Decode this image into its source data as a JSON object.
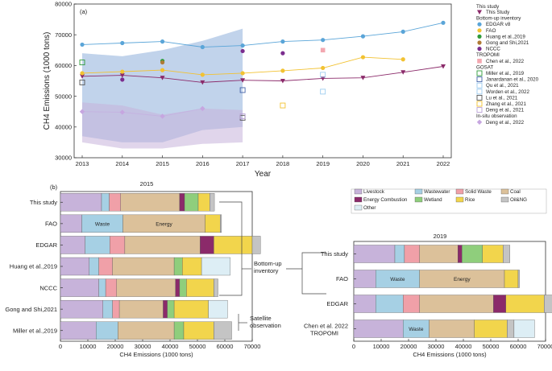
{
  "chart_data": [
    {
      "type": "line",
      "panel_label": "(a)",
      "xlabel": "Year",
      "ylabel": "CH4 Emissions (1000 tons)",
      "xlim": [
        2013,
        2022
      ],
      "ylim": [
        30000,
        80000
      ],
      "x_ticks": [
        "2013",
        "2014",
        "2015",
        "2016",
        "2017",
        "2018",
        "2019",
        "2020",
        "2021",
        "2022"
      ],
      "y_ticks": [
        "30000",
        "40000",
        "50000",
        "60000",
        "70000",
        "80000"
      ],
      "bands": [
        {
          "name": "EDGAR range",
          "color": "#9fbbe0",
          "x": [
            2013,
            2014,
            2015,
            2016,
            2017
          ],
          "lower": [
            37000,
            35000,
            35000,
            39000,
            40000
          ],
          "upper": [
            64000,
            63000,
            65000,
            68000,
            72000
          ]
        },
        {
          "name": "This study range",
          "color": "#c6b3da",
          "x": [
            2013,
            2014,
            2015,
            2016,
            2017
          ],
          "lower": [
            35000,
            33000,
            33000,
            34500,
            35000
          ],
          "upper": [
            48000,
            47000,
            44000,
            46000,
            45500
          ]
        }
      ],
      "legend_title": "This study",
      "legend_groups": [
        {
          "header": "Bottom-up inventory",
          "items": [
            "EDGAR v8",
            "FAO",
            "Huang et al.,2019",
            "Gong and Shi,2021",
            "NCCC"
          ]
        },
        {
          "header": "TROPOMI",
          "items": [
            "Chen et al., 2022"
          ]
        },
        {
          "header": "GOSAT",
          "items": [
            "Miller et al., 2019",
            "Janardanan et al., 2020",
            "Qu et al., 2021",
            "Worden et al., 2022",
            "Lu et al., 2021",
            "Zhang et al., 2021",
            "Deng et al., 2021"
          ]
        },
        {
          "header": "In-situ observation",
          "items": [
            "Deng et al., 2022"
          ]
        }
      ],
      "series": [
        {
          "name": "This Study",
          "marker": "triangle-down",
          "color": "#8b2a6a",
          "x": [
            2013,
            2014,
            2015,
            2016,
            2017,
            2018,
            2019,
            2020,
            2021,
            2022
          ],
          "values": [
            56500,
            56800,
            56000,
            54500,
            55200,
            55000,
            55800,
            56000,
            57800,
            59700
          ]
        },
        {
          "name": "EDGAR v8",
          "marker": "circle",
          "color": "#5aa5d8",
          "x": [
            2013,
            2014,
            2015,
            2016,
            2017,
            2018,
            2019,
            2020,
            2021,
            2022
          ],
          "values": [
            66800,
            67300,
            67800,
            66000,
            66500,
            67800,
            68300,
            69500,
            71000,
            73900
          ]
        },
        {
          "name": "FAO",
          "marker": "circle",
          "color": "#f2c232",
          "x": [
            2013,
            2014,
            2015,
            2016,
            2017,
            2018,
            2019,
            2020,
            2021
          ],
          "values": [
            57500,
            58000,
            58500,
            57000,
            57500,
            58300,
            59200,
            62700,
            62000
          ]
        },
        {
          "name": "Huang et al.,2019",
          "marker": "circle",
          "color": "#2f9b3a",
          "x": [
            2015
          ],
          "values": [
            61500
          ]
        },
        {
          "name": "Gong and Shi,2021",
          "marker": "circle",
          "color": "#b07b35",
          "x": [
            2015
          ],
          "values": [
            61000
          ]
        },
        {
          "name": "NCCC",
          "marker": "circle",
          "color": "#7b2d8e",
          "x": [
            2014,
            2017,
            2018
          ],
          "values": [
            55400,
            64700,
            64000
          ]
        },
        {
          "name": "Chen et al., 2022",
          "marker": "square-filled",
          "color": "#f3a7b0",
          "x": [
            2019
          ],
          "values": [
            65000
          ]
        },
        {
          "name": "Miller et al., 2019",
          "marker": "square-open",
          "color": "#2f9b3a",
          "x": [
            2013
          ],
          "values": [
            61000
          ]
        },
        {
          "name": "Janardanan et al., 2020",
          "marker": "square-open",
          "color": "#4563a8",
          "x": [
            2017
          ],
          "values": [
            52000
          ]
        },
        {
          "name": "Qu et al., 2021",
          "marker": "square-open",
          "color": "#9ecdf0",
          "x": [
            2019
          ],
          "values": [
            51500
          ]
        },
        {
          "name": "Worden et al., 2022",
          "marker": "square-open",
          "color": "#9ecdf0",
          "x": [
            2019
          ],
          "values": [
            57000
          ]
        },
        {
          "name": "Lu et al., 2021",
          "marker": "square-open",
          "color": "#555555",
          "x": [
            2013,
            2017
          ],
          "values": [
            54500,
            43000
          ]
        },
        {
          "name": "Zhang et al., 2021",
          "marker": "square-open",
          "color": "#f2c232",
          "x": [
            2018
          ],
          "values": [
            47000
          ]
        },
        {
          "name": "Deng et al., 2021",
          "marker": "square-open",
          "color": "#b9a1d6",
          "x": [
            2017
          ],
          "values": [
            43500
          ]
        },
        {
          "name": "Deng et al., 2022",
          "marker": "diamond",
          "color": "#c6a6e0",
          "x": [
            2013,
            2014,
            2015,
            2016
          ],
          "values": [
            45000,
            44800,
            43500,
            46000
          ]
        }
      ]
    },
    {
      "type": "bar",
      "orientation": "horizontal-stacked",
      "panel_label": "(b)",
      "title": "2015",
      "xlabel": "CH4 Emissions (1000 tons)",
      "xlim": [
        0,
        70000
      ],
      "x_ticks": [
        "0",
        "10000",
        "20000",
        "30000",
        "40000",
        "50000",
        "60000",
        "70000"
      ],
      "categories": [
        "This study",
        "FAO",
        "EDGAR",
        "Huang et al.,2019",
        "NCCC",
        "Gong and Shi,2021",
        "Miller et al.,2019"
      ],
      "segment_labels": [
        "Livestock",
        "Energy Combustion",
        "Wastewater",
        "Wetland",
        "Solid Waste",
        "Rice",
        "Coal",
        "Oil&NG",
        "Other",
        "Waste",
        "Energy"
      ],
      "group_labels": [
        "Bottom-up inventory",
        "Satellite observation"
      ],
      "bars": [
        {
          "category": "This study",
          "segments": [
            {
              "k": "Livestock",
              "v": 15000
            },
            {
              "k": "Wastewater",
              "v": 2800
            },
            {
              "k": "Solid Waste",
              "v": 4200
            },
            {
              "k": "Coal",
              "v": 21500
            },
            {
              "k": "Energy Combustion",
              "v": 1800
            },
            {
              "k": "Wetland",
              "v": 5000
            },
            {
              "k": "Rice",
              "v": 4200
            },
            {
              "k": "Oil&NG",
              "v": 1700
            }
          ]
        },
        {
          "category": "FAO",
          "segments": [
            {
              "k": "Livestock",
              "v": 7800
            },
            {
              "k": "Waste",
              "v": 15000,
              "label": "Waste"
            },
            {
              "k": "Coal",
              "v": 30000,
              "label": "Energy"
            },
            {
              "k": "Rice",
              "v": 5500
            },
            {
              "k": "Oil&NG",
              "v": 500
            }
          ]
        },
        {
          "category": "EDGAR",
          "segments": [
            {
              "k": "Livestock",
              "v": 9000
            },
            {
              "k": "Wastewater",
              "v": 9000
            },
            {
              "k": "Solid Waste",
              "v": 5500
            },
            {
              "k": "Coal",
              "v": 27500
            },
            {
              "k": "Energy Combustion",
              "v": 5000
            },
            {
              "k": "Rice",
              "v": 14000
            },
            {
              "k": "Oil&NG",
              "v": 3000
            }
          ]
        },
        {
          "category": "Huang et al.,2019",
          "segments": [
            {
              "k": "Livestock",
              "v": 10500
            },
            {
              "k": "Wastewater",
              "v": 3500
            },
            {
              "k": "Solid Waste",
              "v": 5000
            },
            {
              "k": "Coal",
              "v": 22500
            },
            {
              "k": "Wetland",
              "v": 3000
            },
            {
              "k": "Rice",
              "v": 7000
            },
            {
              "k": "Other",
              "v": 10500
            }
          ]
        },
        {
          "category": "NCCC",
          "segments": [
            {
              "k": "Livestock",
              "v": 14000
            },
            {
              "k": "Wastewater",
              "v": 2500
            },
            {
              "k": "Solid Waste",
              "v": 4000
            },
            {
              "k": "Coal",
              "v": 21500
            },
            {
              "k": "Energy Combustion",
              "v": 1500
            },
            {
              "k": "Wetland",
              "v": 2500
            },
            {
              "k": "Rice",
              "v": 10000
            },
            {
              "k": "Oil&NG",
              "v": 1500
            }
          ]
        },
        {
          "category": "Gong and Shi,2021",
          "segments": [
            {
              "k": "Livestock",
              "v": 15500
            },
            {
              "k": "Wastewater",
              "v": 3500
            },
            {
              "k": "Solid Waste",
              "v": 2500
            },
            {
              "k": "Coal",
              "v": 16000
            },
            {
              "k": "Energy Combustion",
              "v": 1500
            },
            {
              "k": "Wetland",
              "v": 2500
            },
            {
              "k": "Rice",
              "v": 12500
            },
            {
              "k": "Other",
              "v": 7000
            }
          ]
        },
        {
          "category": "Miller et al.,2019",
          "segments": [
            {
              "k": "Livestock",
              "v": 13000
            },
            {
              "k": "Wastewater",
              "v": 8000
            },
            {
              "k": "Coal",
              "v": 20500
            },
            {
              "k": "Wetland",
              "v": 3500
            },
            {
              "k": "Rice",
              "v": 11000
            },
            {
              "k": "Oil&NG",
              "v": 6500
            }
          ]
        }
      ]
    },
    {
      "type": "bar",
      "orientation": "horizontal-stacked",
      "title": "2019",
      "xlabel": "CH4 Emissions (1000 tons)",
      "xlim": [
        0,
        70000
      ],
      "x_ticks": [
        "0",
        "10000",
        "20000",
        "30000",
        "40000",
        "50000",
        "60000",
        "70000"
      ],
      "categories": [
        "This study",
        "FAO",
        "EDGAR",
        "Chen et al. 2022 TROPOMI"
      ],
      "bars": [
        {
          "category": "This study",
          "segments": [
            {
              "k": "Livestock",
              "v": 15000
            },
            {
              "k": "Wastewater",
              "v": 3500
            },
            {
              "k": "Solid Waste",
              "v": 5500
            },
            {
              "k": "Coal",
              "v": 14000
            },
            {
              "k": "Energy Combustion",
              "v": 1500
            },
            {
              "k": "Wetland",
              "v": 7500
            },
            {
              "k": "Rice",
              "v": 7500
            },
            {
              "k": "Oil&NG",
              "v": 2500
            }
          ]
        },
        {
          "category": "FAO",
          "segments": [
            {
              "k": "Livestock",
              "v": 8000
            },
            {
              "k": "Waste",
              "v": 16000,
              "label": "Waste"
            },
            {
              "k": "Coal",
              "v": 31000,
              "label": "Energy"
            },
            {
              "k": "Rice",
              "v": 5000
            },
            {
              "k": "Oil&NG",
              "v": 500
            }
          ]
        },
        {
          "category": "EDGAR",
          "segments": [
            {
              "k": "Livestock",
              "v": 8000
            },
            {
              "k": "Wastewater",
              "v": 10000
            },
            {
              "k": "Solid Waste",
              "v": 6000
            },
            {
              "k": "Coal",
              "v": 27000
            },
            {
              "k": "Energy Combustion",
              "v": 4500
            },
            {
              "k": "Rice",
              "v": 14000
            },
            {
              "k": "Oil&NG",
              "v": 3500
            }
          ]
        },
        {
          "category": "Chen et al. 2022 TROPOMI",
          "segments": [
            {
              "k": "Livestock",
              "v": 18000
            },
            {
              "k": "Waste",
              "v": 9500,
              "label": "Waste"
            },
            {
              "k": "Coal",
              "v": 16500
            },
            {
              "k": "Rice",
              "v": 12000
            },
            {
              "k": "Oil&NG",
              "v": 2500
            },
            {
              "k": "Other",
              "v": 7500
            }
          ]
        }
      ]
    }
  ],
  "colors": {
    "Livestock": "#c7b3da",
    "Energy Combustion": "#8b2a6a",
    "Wastewater": "#a6d0e4",
    "Wetland": "#8fce7c",
    "Solid Waste": "#f0a0a8",
    "Rice": "#f2d54c",
    "Coal": "#dcc19a",
    "Oil&NG": "#c4c4c4",
    "Other": "#ddeef5",
    "Waste": "#a6d0e4"
  }
}
